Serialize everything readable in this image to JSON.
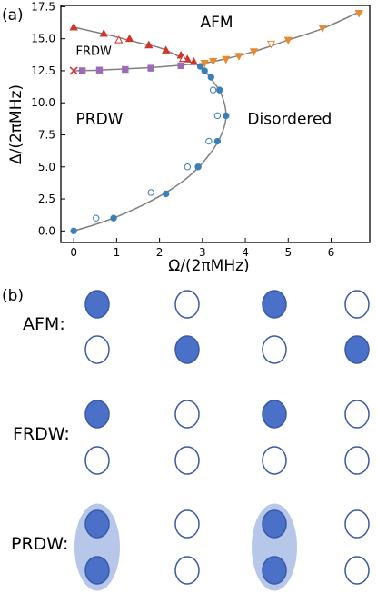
{
  "panel_a_label": "(a)",
  "panel_b_label": "(b)",
  "colors": {
    "afm_points": "#d0352b",
    "frdw_points": "#9b6bb3",
    "boundary_points": "#3b7fb8",
    "disordered_points": "#e98a2c",
    "curve": "#808080",
    "filled_site": "#4a70c8",
    "site_outline": "#3a5aa8",
    "pair_ellipse": "#a9bde6"
  },
  "chart_data": {
    "type": "scatter",
    "xlabel": "Ω/(2πMHz)",
    "ylabel": "Δ/(2πMHz)",
    "xlim": [
      -0.3,
      6.9
    ],
    "ylim": [
      -0.9,
      17.6
    ],
    "x_ticks": [
      0,
      1,
      2,
      3,
      4,
      5,
      6
    ],
    "y_ticks": [
      0.0,
      2.5,
      5.0,
      7.5,
      10.0,
      12.5,
      15.0,
      17.5
    ],
    "y_tick_labels": [
      "0.0",
      "2.5",
      "5.0",
      "7.5",
      "10.0",
      "12.5",
      "15.0",
      "17.5"
    ],
    "grid": false,
    "region_labels": [
      {
        "text": "AFM",
        "x": 2.95,
        "y": 15.9
      },
      {
        "text": "FRDW",
        "x": 0.05,
        "y": 13.75
      },
      {
        "text": "PRDW",
        "x": 0.05,
        "y": 8.35
      },
      {
        "text": "Disordered",
        "x": 4.05,
        "y": 8.35
      }
    ],
    "curves": [
      {
        "points": [
          [
            0,
            15.9
          ],
          [
            0.8,
            15.3
          ],
          [
            1.5,
            14.7
          ],
          [
            2.0,
            14.3
          ],
          [
            2.4,
            13.7
          ],
          [
            2.7,
            13.2
          ],
          [
            2.9,
            13.0
          ]
        ]
      },
      {
        "points": [
          [
            0,
            12.5
          ],
          [
            0.6,
            12.55
          ],
          [
            1.2,
            12.65
          ],
          [
            1.8,
            12.75
          ],
          [
            2.4,
            12.9
          ],
          [
            2.7,
            13.0
          ],
          [
            2.9,
            13.0
          ]
        ]
      },
      {
        "points": [
          [
            2.9,
            13.0
          ],
          [
            3.5,
            13.4
          ],
          [
            4.2,
            14.0
          ],
          [
            5.0,
            14.9
          ],
          [
            5.8,
            15.8
          ],
          [
            6.6,
            17.0
          ]
        ]
      },
      {
        "points": [
          [
            0,
            0
          ],
          [
            0.5,
            0.5
          ],
          [
            1.0,
            1.1
          ],
          [
            1.6,
            2.0
          ],
          [
            2.2,
            3.1
          ],
          [
            2.7,
            4.3
          ],
          [
            3.1,
            5.7
          ],
          [
            3.4,
            7.2
          ],
          [
            3.55,
            8.9
          ],
          [
            3.45,
            10.6
          ],
          [
            3.2,
            11.9
          ],
          [
            3.0,
            12.7
          ],
          [
            2.9,
            13.0
          ]
        ]
      }
    ],
    "series": [
      {
        "marker": "triangle-up",
        "filled": true,
        "color": "#d0352b",
        "points": [
          [
            0,
            15.9
          ],
          [
            0.7,
            15.4
          ],
          [
            1.3,
            15.0
          ],
          [
            1.75,
            14.5
          ],
          [
            2.15,
            14.1
          ],
          [
            2.5,
            13.7
          ],
          [
            2.65,
            13.4
          ],
          [
            2.8,
            13.2
          ]
        ]
      },
      {
        "marker": "triangle-up",
        "filled": false,
        "color": "#d0352b",
        "points": [
          [
            1.05,
            14.9
          ],
          [
            2.55,
            13.45
          ]
        ]
      },
      {
        "marker": "x",
        "filled": true,
        "color": "#d0352b",
        "points": [
          [
            0,
            12.5
          ]
        ]
      },
      {
        "marker": "square",
        "filled": true,
        "color": "#9b6bb3",
        "points": [
          [
            0.2,
            12.5
          ],
          [
            0.6,
            12.55
          ],
          [
            1.2,
            12.6
          ],
          [
            1.8,
            12.7
          ],
          [
            2.5,
            12.9
          ]
        ]
      },
      {
        "marker": "circle",
        "filled": true,
        "color": "#3b7fb8",
        "points": [
          [
            0,
            0.0
          ],
          [
            0.93,
            1.0
          ],
          [
            2.15,
            2.9
          ],
          [
            2.9,
            5.0
          ],
          [
            3.35,
            7.0
          ],
          [
            3.55,
            9.0
          ],
          [
            3.4,
            11.0
          ],
          [
            3.2,
            12.0
          ],
          [
            3.05,
            12.5
          ],
          [
            2.95,
            12.85
          ]
        ]
      },
      {
        "marker": "circle",
        "filled": false,
        "color": "#3b7fb8",
        "points": [
          [
            0.52,
            1.0
          ],
          [
            1.8,
            3.0
          ],
          [
            2.65,
            5.0
          ],
          [
            3.15,
            7.0
          ],
          [
            3.35,
            9.0
          ],
          [
            3.25,
            11.0
          ]
        ]
      },
      {
        "marker": "triangle-down",
        "filled": true,
        "color": "#e98a2c",
        "points": [
          [
            3.05,
            13.1
          ],
          [
            3.25,
            13.25
          ],
          [
            3.55,
            13.4
          ],
          [
            3.85,
            13.65
          ],
          [
            4.2,
            14.0
          ],
          [
            5.0,
            14.9
          ],
          [
            5.8,
            15.85
          ],
          [
            6.65,
            17.0
          ]
        ]
      },
      {
        "marker": "triangle-down",
        "filled": false,
        "color": "#e98a2c",
        "points": [
          [
            4.6,
            14.6
          ]
        ]
      }
    ]
  },
  "lattice": {
    "rows": [
      {
        "label": "AFM:",
        "top": [
          true,
          false,
          true,
          false
        ],
        "bottom": [
          false,
          true,
          false,
          true
        ],
        "pairs": []
      },
      {
        "label": "FRDW:",
        "top": [
          true,
          false,
          true,
          false
        ],
        "bottom": [
          false,
          false,
          false,
          false
        ],
        "pairs": []
      },
      {
        "label": "PRDW:",
        "top": [
          true,
          false,
          true,
          false
        ],
        "bottom": [
          true,
          false,
          true,
          false
        ],
        "pairs": [
          0,
          2
        ]
      }
    ]
  }
}
